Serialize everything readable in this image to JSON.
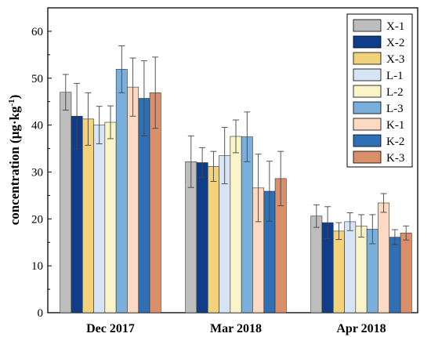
{
  "chart_data": {
    "type": "bar",
    "ylabel_main": "concentration (μg·kg",
    "ylabel_sup": "-1",
    "ylabel_end": ")",
    "xlabel": "",
    "ylim": [
      0,
      65
    ],
    "yticks": [
      0,
      10,
      20,
      30,
      40,
      50,
      60
    ],
    "grid": false,
    "legend_position": "top-right",
    "categories": [
      "Dec 2017",
      "Mar 2018",
      "Apr 2018"
    ],
    "series": [
      {
        "name": "X-1",
        "color": "#bdbdbd",
        "values": [
          47.0,
          32.2,
          20.6
        ],
        "errors": [
          3.8,
          5.5,
          2.4
        ]
      },
      {
        "name": "X-2",
        "color": "#0f3d8a",
        "values": [
          41.9,
          32.0,
          19.2
        ],
        "errors": [
          7.0,
          3.2,
          3.4
        ]
      },
      {
        "name": "X-3",
        "color": "#f2d27a",
        "values": [
          41.3,
          31.2,
          17.4
        ],
        "errors": [
          5.6,
          3.2,
          1.8
        ]
      },
      {
        "name": "L-1",
        "color": "#d6e4f5",
        "values": [
          40.0,
          33.5,
          19.4
        ],
        "errors": [
          4.0,
          6.0,
          1.9
        ]
      },
      {
        "name": "L-2",
        "color": "#faf5c8",
        "values": [
          40.6,
          37.6,
          18.5
        ],
        "errors": [
          3.5,
          3.5,
          2.4
        ]
      },
      {
        "name": "L-3",
        "color": "#7aaedb",
        "values": [
          51.9,
          37.5,
          17.8
        ],
        "errors": [
          5.0,
          5.3,
          3.1
        ]
      },
      {
        "name": "K-1",
        "color": "#fbd9c3",
        "values": [
          48.1,
          26.6,
          23.4
        ],
        "errors": [
          6.2,
          7.2,
          2.0
        ]
      },
      {
        "name": "K-2",
        "color": "#2e6fb5",
        "values": [
          45.7,
          25.9,
          16.1
        ],
        "errors": [
          8.0,
          6.4,
          1.6
        ]
      },
      {
        "name": "K-3",
        "color": "#d9906a",
        "values": [
          46.9,
          28.6,
          17.0
        ],
        "errors": [
          7.6,
          5.8,
          1.5
        ]
      }
    ]
  }
}
